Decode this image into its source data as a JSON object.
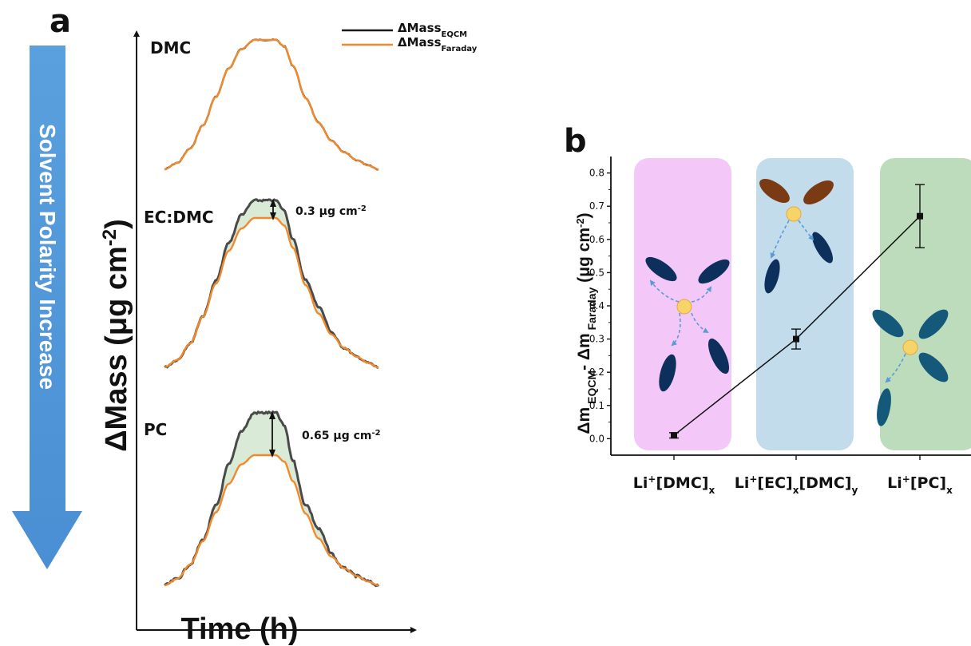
{
  "chart_data": [
    {
      "panel": "a",
      "type": "line",
      "xlabel": "Time (h)",
      "ylabel": "ΔMass (μg cm-2)",
      "side_arrow_label": "Solvent Polarity Increase",
      "legend": {
        "placement": "top-right",
        "entries": [
          {
            "name": "ΔMass",
            "sub": "EQCM",
            "color": "#1a1a1a"
          },
          {
            "name": "ΔMass",
            "sub": "Faraday",
            "color": "#f08a2c"
          }
        ]
      },
      "series_profiles": {
        "description_axis_t": "normalized time 0..1",
        "t": [
          0.0,
          0.06,
          0.12,
          0.18,
          0.24,
          0.3,
          0.36,
          0.42,
          0.47,
          0.52,
          0.56,
          0.6,
          0.66,
          0.72,
          0.78,
          0.84,
          0.9,
          0.95,
          1.0
        ],
        "profile": [
          0.0,
          0.05,
          0.16,
          0.34,
          0.56,
          0.78,
          0.93,
          1.0,
          1.0,
          1.0,
          0.95,
          0.8,
          0.55,
          0.36,
          0.22,
          0.13,
          0.07,
          0.03,
          0.0
        ]
      },
      "subplots": [
        {
          "label": "DMC",
          "difference": null,
          "difference_label": ""
        },
        {
          "label": "EC:DMC",
          "difference": 0.3,
          "difference_label": "0.3 μg cm",
          "difference_sup": "-2"
        },
        {
          "label": "PC",
          "difference": 0.65,
          "difference_label": "0.65 μg cm",
          "difference_sup": "-2"
        }
      ]
    },
    {
      "panel": "b",
      "type": "line",
      "ylabel_parts": {
        "main": "Δm",
        "sub1": "EQCM",
        "mid": "- Δm",
        "sub2": "Faraday",
        "unit": " (μg cm",
        "unit_sup": "-2",
        "unit_end": ")"
      },
      "categories": [
        {
          "base": "Li",
          "sup": "+",
          "parts": [
            [
              "[DMC]",
              "x"
            ]
          ]
        },
        {
          "base": "Li",
          "sup": "+",
          "parts": [
            [
              "[EC]",
              "x"
            ],
            [
              "[DMC]",
              "y"
            ]
          ]
        },
        {
          "base": "Li",
          "sup": "+",
          "parts": [
            [
              "[PC]",
              "x"
            ]
          ]
        }
      ],
      "values": [
        0.01,
        0.3,
        0.67
      ],
      "errors": [
        0.008,
        0.03,
        0.095
      ],
      "ylim": [
        -0.04,
        0.84
      ],
      "yticks": [
        "0.0",
        "0.1",
        "0.2",
        "0.3",
        "0.4",
        "0.5",
        "0.6",
        "0.7",
        "0.8"
      ],
      "background_colors": [
        "#f3c8f8",
        "#c2dcec",
        "#bcdcbc"
      ],
      "ion_color": "#f7d468",
      "solvent_colors": {
        "dmc": "#0d2f5c",
        "ec": "#7a3a14",
        "pc": "#14597a"
      },
      "arrow_color": "#5b9bd5"
    }
  ],
  "panel_labels": {
    "a": "a",
    "b": "b"
  }
}
